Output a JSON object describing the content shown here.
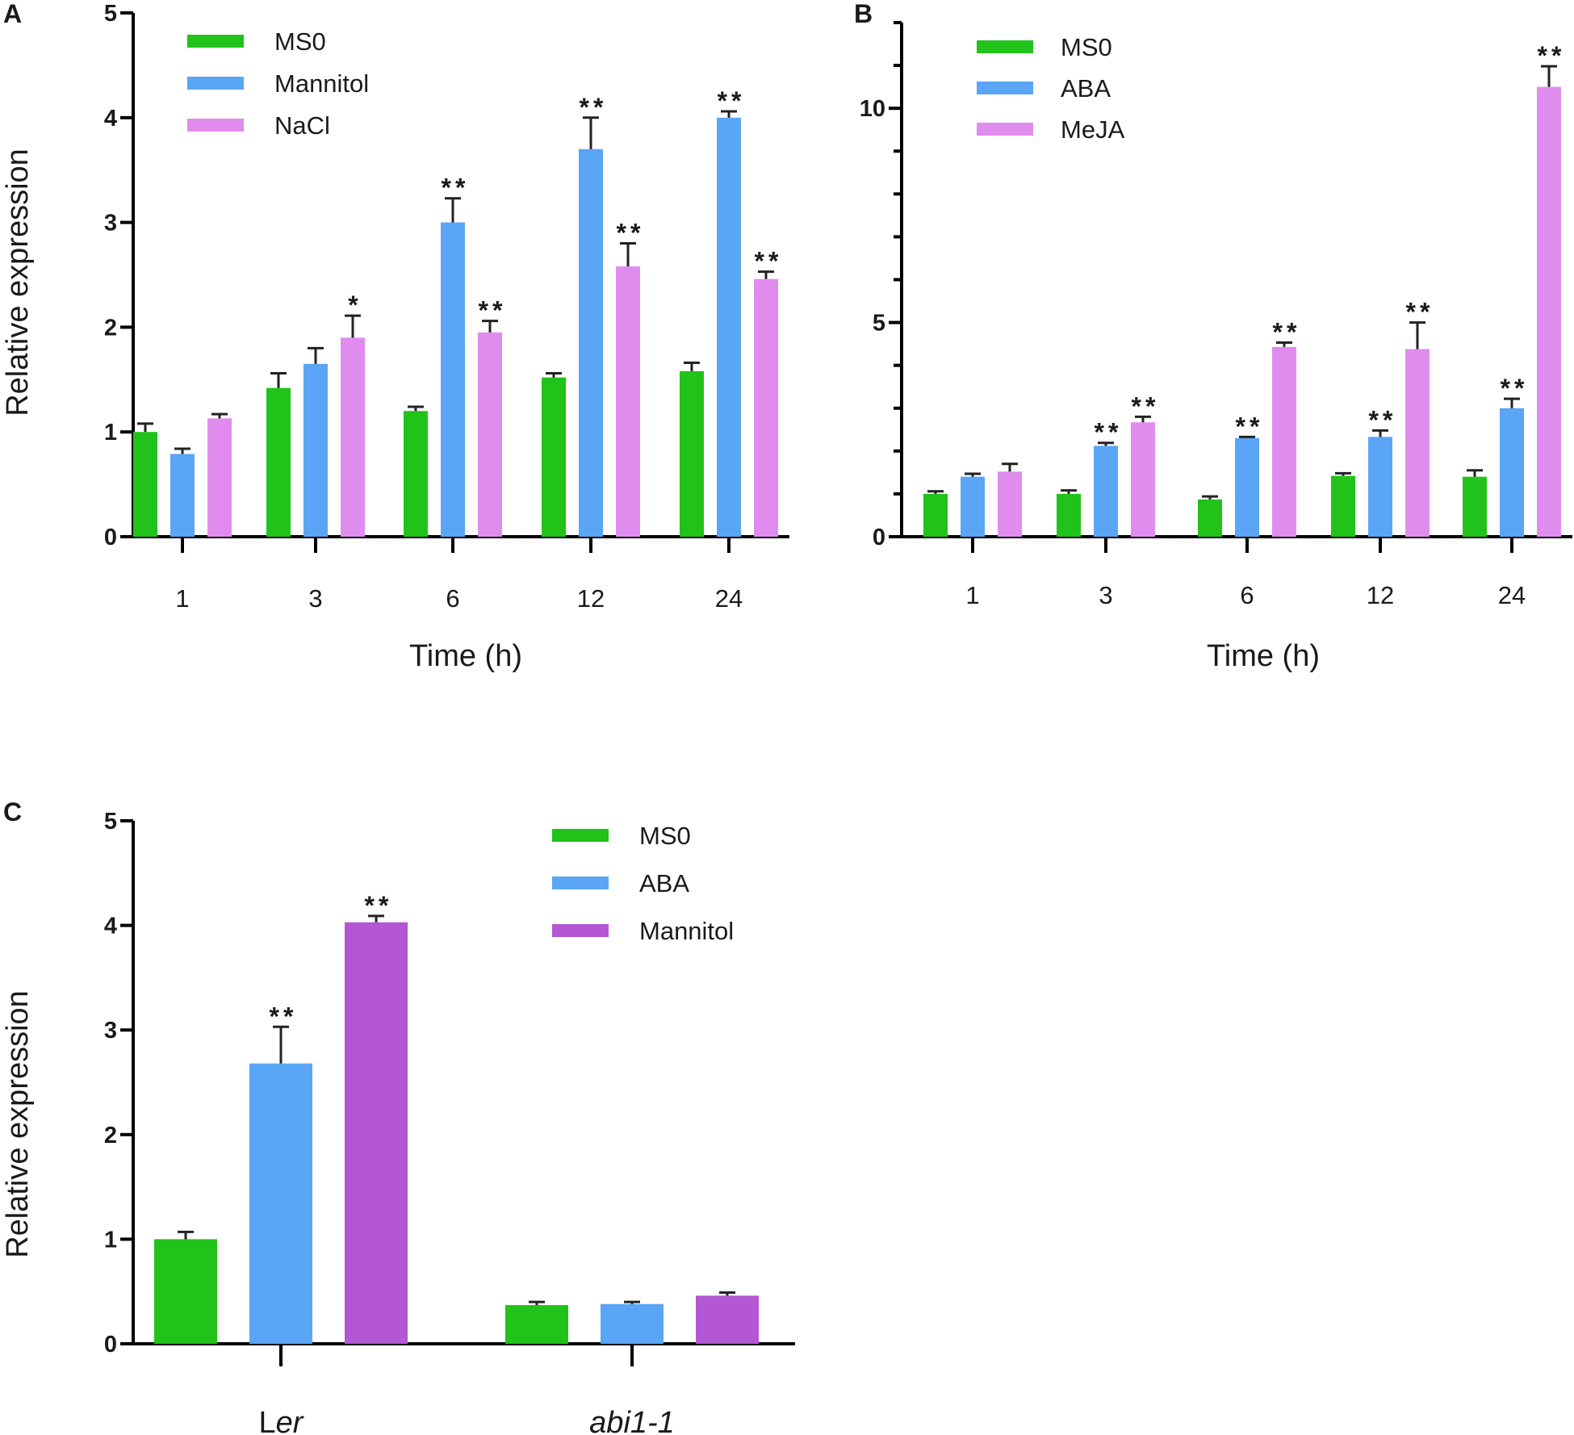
{
  "chart_data": [
    {
      "id": "A",
      "panel_label": "A",
      "type": "bar",
      "ylabel": "Relative expression",
      "xlabel": "Time (h)",
      "ylim": [
        0,
        5
      ],
      "yticks": [
        0,
        1,
        2,
        3,
        4,
        5
      ],
      "categories": [
        "1",
        "3",
        "6",
        "12",
        "24"
      ],
      "legend_position": "top-left",
      "series": [
        {
          "name": "MS0",
          "color": "#21c21a",
          "values": [
            1.0,
            1.42,
            1.2,
            1.52,
            1.58
          ],
          "errors": [
            0.08,
            0.14,
            0.04,
            0.04,
            0.08
          ],
          "sig": [
            "",
            "",
            "",
            "",
            ""
          ]
        },
        {
          "name": "Mannitol",
          "color": "#5aa5f5",
          "values": [
            0.79,
            1.65,
            3.0,
            3.7,
            4.0
          ],
          "errors": [
            0.05,
            0.15,
            0.23,
            0.3,
            0.06
          ],
          "sig": [
            "",
            "",
            "**",
            "**",
            "**"
          ]
        },
        {
          "name": "NaCl",
          "color": "#e08cef",
          "values": [
            1.13,
            1.9,
            1.95,
            2.58,
            2.46
          ],
          "errors": [
            0.04,
            0.21,
            0.11,
            0.22,
            0.07
          ],
          "sig": [
            "",
            "*",
            "**",
            "**",
            "**"
          ]
        }
      ]
    },
    {
      "id": "B",
      "panel_label": "B",
      "type": "bar",
      "ylabel": "",
      "xlabel": "Time (h)",
      "ylim": [
        0,
        12
      ],
      "yticks": [
        0,
        5,
        10
      ],
      "minor_yticks": [
        1,
        2,
        3,
        4,
        6,
        7,
        8,
        9,
        11,
        12
      ],
      "categories": [
        "1",
        "3",
        "6",
        "12",
        "24"
      ],
      "legend_position": "top-left",
      "series": [
        {
          "name": "MS0",
          "color": "#21c21a",
          "values": [
            1.0,
            1.0,
            0.87,
            1.42,
            1.4
          ],
          "errors": [
            0.06,
            0.08,
            0.07,
            0.06,
            0.15
          ],
          "sig": [
            "",
            "",
            "",
            "",
            ""
          ]
        },
        {
          "name": "ABA",
          "color": "#5aa5f5",
          "values": [
            1.4,
            2.12,
            2.3,
            2.33,
            3.0
          ],
          "errors": [
            0.07,
            0.07,
            0.03,
            0.15,
            0.22
          ],
          "sig": [
            "",
            "**",
            "**",
            "**",
            "**"
          ]
        },
        {
          "name": "MeJA",
          "color": "#e08cef",
          "values": [
            1.52,
            2.67,
            4.43,
            4.38,
            10.5
          ],
          "errors": [
            0.18,
            0.13,
            0.1,
            0.62,
            0.48
          ],
          "sig": [
            "",
            "**",
            "**",
            "**",
            "**"
          ]
        }
      ]
    },
    {
      "id": "C",
      "panel_label": "C",
      "type": "bar",
      "ylabel": "Relative expression",
      "xlabel": "",
      "ylim": [
        0,
        5
      ],
      "yticks": [
        0,
        1,
        2,
        3,
        4,
        5
      ],
      "categories": [
        "Ler",
        "abi1-1"
      ],
      "legend_position": "top-right",
      "series": [
        {
          "name": "MS0",
          "color": "#21c21a",
          "values": [
            1.0,
            0.37
          ],
          "errors": [
            0.07,
            0.03
          ],
          "sig": [
            "",
            ""
          ]
        },
        {
          "name": "ABA",
          "color": "#5aa5f5",
          "values": [
            2.68,
            0.38
          ],
          "errors": [
            0.35,
            0.02
          ],
          "sig": [
            "**",
            ""
          ]
        },
        {
          "name": "Mannitol",
          "color": "#b457d4",
          "values": [
            4.03,
            0.46
          ],
          "errors": [
            0.06,
            0.03
          ],
          "sig": [
            "**",
            ""
          ]
        }
      ]
    }
  ]
}
